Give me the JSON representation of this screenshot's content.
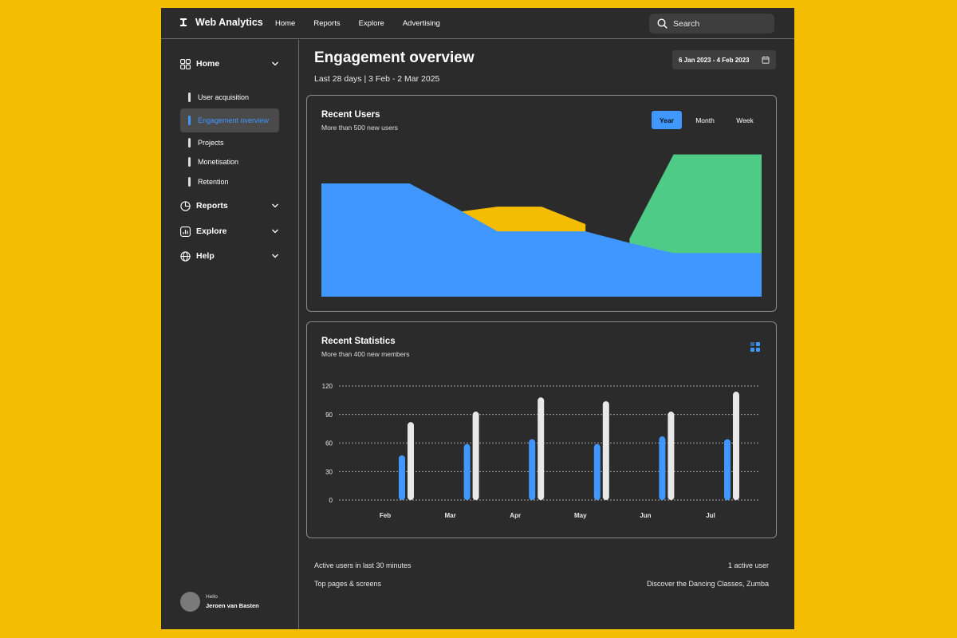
{
  "header": {
    "app_title": "Web Analytics",
    "nav": [
      "Home",
      "Reports",
      "Explore",
      "Advertising"
    ],
    "search_placeholder": "Search"
  },
  "sidebar": {
    "home_label": "Home",
    "items": [
      {
        "label": "User acquisition"
      },
      {
        "label": "Engagement overview",
        "active": true
      },
      {
        "label": "Projects"
      },
      {
        "label": "Monetisation"
      },
      {
        "label": "Retention"
      }
    ],
    "reports_label": "Reports",
    "explore_label": "Explore",
    "help_label": "Help",
    "user": {
      "greeting": "Hello",
      "name": "Jeroen van Basten"
    }
  },
  "page": {
    "title": "Engagement overview",
    "subtitle": "Last 28 days | 3 Feb - 2 Mar 2025",
    "date_range": "6 Jan 2023 - 4 Feb 2023"
  },
  "recent_users": {
    "title": "Recent Users",
    "subtitle": "More than 500 new users",
    "tabs": [
      "Year",
      "Month",
      "Week"
    ],
    "active_tab": "Year"
  },
  "recent_statistics": {
    "title": "Recent Statistics",
    "subtitle": "More than 400 new members"
  },
  "footer": {
    "active_label": "Active users in last 30 minutes",
    "active_value": "1 active user",
    "pages_label": "Top pages & screens",
    "pages_value": "Discover the Dancing Classes, Zumba"
  },
  "colors": {
    "accent": "#3f97ff",
    "yellow": "#F5BD02",
    "green": "#4ecb86",
    "light": "#e8e8e8"
  },
  "chart_data": [
    {
      "type": "area",
      "title": "Recent Users",
      "x": [
        0,
        1,
        2,
        3,
        4,
        5,
        6,
        7,
        8,
        9,
        10
      ],
      "ylim": [
        0,
        100
      ],
      "series": [
        {
          "name": "blue",
          "values": [
            78,
            78,
            78,
            62,
            45,
            45,
            45,
            37,
            30,
            30,
            30
          ]
        },
        {
          "name": "yellow",
          "values": [
            null,
            null,
            null,
            58,
            62,
            62,
            50,
            null,
            null,
            null,
            null
          ]
        },
        {
          "name": "green",
          "values": [
            null,
            null,
            null,
            null,
            null,
            null,
            null,
            40,
            98,
            98,
            98
          ]
        }
      ]
    },
    {
      "type": "bar",
      "title": "Recent Statistics",
      "categories": [
        "Feb",
        "Mar",
        "Apr",
        "May",
        "Jun",
        "Jul"
      ],
      "ylim": [
        0,
        120
      ],
      "yticks": [
        0,
        30,
        60,
        90,
        120
      ],
      "series": [
        {
          "name": "blue",
          "values": [
            47,
            59,
            64,
            59,
            67,
            64
          ]
        },
        {
          "name": "white",
          "values": [
            82,
            93,
            108,
            104,
            93,
            114
          ]
        }
      ]
    }
  ]
}
